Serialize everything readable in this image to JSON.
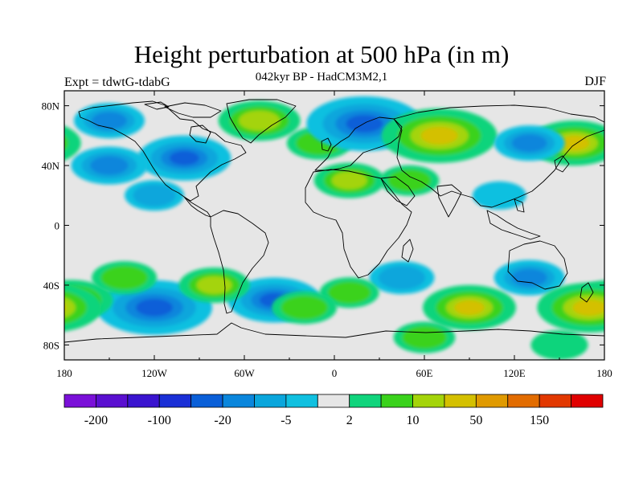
{
  "title": "Height perturbation at 500 hPa (in m)",
  "subtitle": "042kyr BP - HadCM3M2,1",
  "experiment": "Expt = tdwtG-tdabG",
  "season": "DJF",
  "map": {
    "projection": "cylindrical equidistant",
    "lon_range": [
      -180,
      180
    ],
    "lat_range": [
      -90,
      90
    ],
    "x_ticks": [
      {
        "lon": -180,
        "label": "180"
      },
      {
        "lon": -120,
        "label": "120W"
      },
      {
        "lon": -60,
        "label": "60W"
      },
      {
        "lon": 0,
        "label": "0"
      },
      {
        "lon": 60,
        "label": "60E"
      },
      {
        "lon": 120,
        "label": "120E"
      },
      {
        "lon": 180,
        "label": "180"
      }
    ],
    "y_ticks": [
      {
        "lat": 80,
        "label": "80N"
      },
      {
        "lat": 40,
        "label": "40N"
      },
      {
        "lat": 0,
        "label": "0"
      },
      {
        "lat": -40,
        "label": "40S"
      },
      {
        "lat": -80,
        "label": "80S"
      }
    ],
    "background_color": "#e6e6e6"
  },
  "colorbar": {
    "colors": [
      "#7a10d8",
      "#5a0fd0",
      "#3a14cf",
      "#1a2fd6",
      "#0a5fd8",
      "#0a86dc",
      "#0aa6dc",
      "#10c0e0",
      "#e6e6e6",
      "#10d47c",
      "#3ad21c",
      "#a4d40a",
      "#d4c000",
      "#e09a00",
      "#e26c00",
      "#e23800",
      "#e00000"
    ],
    "labels": [
      {
        "boundary": 1,
        "text": "-200"
      },
      {
        "boundary": 3,
        "text": "-100"
      },
      {
        "boundary": 5,
        "text": "-20"
      },
      {
        "boundary": 7,
        "text": "-5"
      },
      {
        "boundary": 9,
        "text": "2"
      },
      {
        "boundary": 11,
        "text": "10"
      },
      {
        "boundary": 13,
        "text": "50"
      },
      {
        "boundary": 15,
        "text": "150"
      }
    ]
  },
  "anomalies": [
    {
      "lon": -50,
      "lat": 70,
      "value": 30
    },
    {
      "lon": -10,
      "lat": 55,
      "value": 15
    },
    {
      "lon": 20,
      "lat": 68,
      "value": -60
    },
    {
      "lon": -100,
      "lat": 45,
      "value": -40
    },
    {
      "lon": -150,
      "lat": 40,
      "value": -25
    },
    {
      "lon": -150,
      "lat": 70,
      "value": -20
    },
    {
      "lon": 70,
      "lat": 60,
      "value": 60
    },
    {
      "lon": 160,
      "lat": 55,
      "value": 40
    },
    {
      "lon": 130,
      "lat": 55,
      "value": -20
    },
    {
      "lon": 10,
      "lat": 30,
      "value": 20
    },
    {
      "lon": 50,
      "lat": 30,
      "value": 10
    },
    {
      "lon": -120,
      "lat": 20,
      "value": -10
    },
    {
      "lon": 110,
      "lat": 20,
      "value": -5
    },
    {
      "lon": -120,
      "lat": -55,
      "value": -60
    },
    {
      "lon": -40,
      "lat": -50,
      "value": -40
    },
    {
      "lon": -175,
      "lat": -50,
      "value": 30
    },
    {
      "lon": -140,
      "lat": -35,
      "value": 15
    },
    {
      "lon": -80,
      "lat": -40,
      "value": 20
    },
    {
      "lon": 90,
      "lat": -55,
      "value": 40
    },
    {
      "lon": 130,
      "lat": -35,
      "value": -20
    },
    {
      "lon": 170,
      "lat": -55,
      "value": 50
    },
    {
      "lon": 45,
      "lat": -35,
      "value": -15
    },
    {
      "lon": 10,
      "lat": -45,
      "value": 10
    },
    {
      "lon": -20,
      "lat": -55,
      "value": 15
    },
    {
      "lon": 60,
      "lat": -75,
      "value": 12
    },
    {
      "lon": 150,
      "lat": -80,
      "value": 8
    }
  ]
}
